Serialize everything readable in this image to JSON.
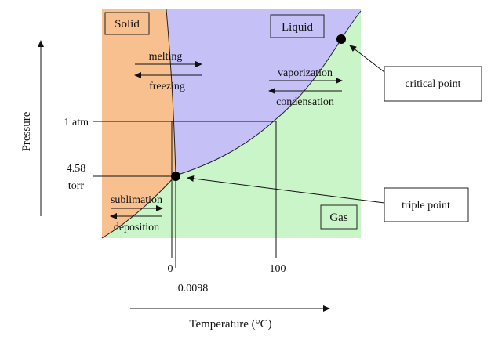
{
  "regions": {
    "solid": "Solid",
    "liquid": "Liquid",
    "gas": "Gas"
  },
  "transitions": {
    "melting": "melting",
    "freezing": "freezing",
    "vaporization": "vaporization",
    "condensation": "condensation",
    "sublimation": "sublimation",
    "deposition": "deposition"
  },
  "axes": {
    "x_title": "Temperature (°C)",
    "y_title": "Pressure",
    "x_ticks": [
      "0",
      "0.0098",
      "100"
    ],
    "y_ticks": {
      "one_atm": "1 atm",
      "triple_line1": "4.58",
      "triple_line2": "torr"
    }
  },
  "callouts": {
    "critical_point": "critical point",
    "triple_point": "triple point"
  },
  "colors": {
    "solid": "#f8c08e",
    "liquid": "#c5c1f6",
    "gas": "#c9f5c8",
    "line": "#111111"
  }
}
